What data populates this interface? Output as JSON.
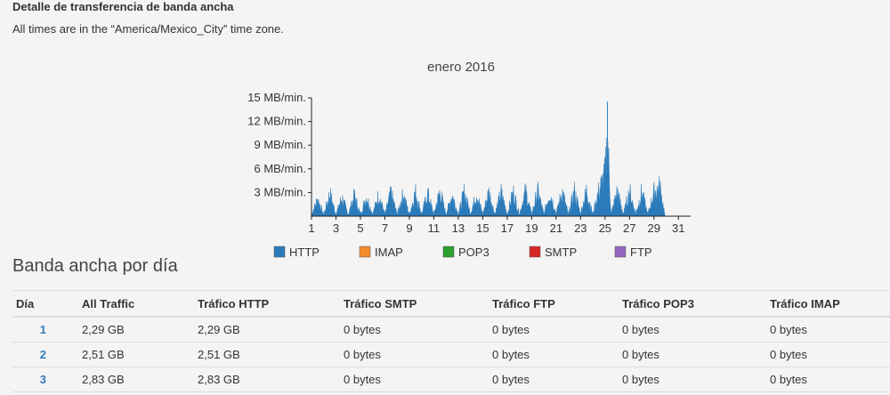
{
  "page": {
    "section_title": "Detalle de transferencia de banda ancha",
    "timezone_note": "All times are in the “America/Mexico_City” time zone.",
    "daily_heading": "Banda ancha por día"
  },
  "colors": {
    "http": "#2b7bba",
    "imap": "#f58a2c",
    "pop3": "#2ca02c",
    "smtp": "#d62728",
    "ftp": "#9467bd",
    "link": "#337ab7"
  },
  "chart_data": {
    "type": "area",
    "title": "enero 2016",
    "xlabel": "",
    "ylabel": "",
    "xlim": [
      1,
      32
    ],
    "ylim": [
      0,
      15
    ],
    "y_ticks": [
      "3 MB/min.",
      "6 MB/min.",
      "9 MB/min.",
      "12 MB/min.",
      "15 MB/min."
    ],
    "y_tick_values": [
      3,
      6,
      9,
      12,
      15
    ],
    "x_ticks": [
      "1",
      "3",
      "5",
      "7",
      "9",
      "11",
      "13",
      "15",
      "17",
      "19",
      "21",
      "23",
      "25",
      "27",
      "29",
      "31"
    ],
    "x_tick_values": [
      1,
      3,
      5,
      7,
      9,
      11,
      13,
      15,
      17,
      19,
      21,
      23,
      25,
      27,
      29,
      31
    ],
    "series": [
      {
        "name": "HTTP",
        "x": [
          1,
          1.5,
          2,
          2.5,
          3,
          3.5,
          4,
          4.5,
          5,
          5.5,
          6,
          6.5,
          7,
          7.5,
          8,
          8.5,
          9,
          9.5,
          10,
          10.5,
          11,
          11.5,
          12,
          12.5,
          13,
          13.5,
          14,
          14.5,
          15,
          15.5,
          16,
          16.5,
          17,
          17.5,
          18,
          18.5,
          19,
          19.5,
          20,
          20.5,
          21,
          21.5,
          22,
          22.5,
          23,
          23.5,
          24,
          24.5,
          25,
          25.2,
          25.5,
          26,
          26.5,
          27,
          27.5,
          28,
          28.5,
          29,
          29.5,
          29.9
        ],
        "y": [
          0.3,
          3.2,
          0.3,
          4.2,
          0.4,
          3.5,
          0.3,
          3.8,
          0.4,
          3.6,
          0.4,
          4.0,
          0.4,
          4.3,
          0.4,
          4.1,
          0.4,
          4.5,
          0.4,
          4.2,
          0.4,
          4.6,
          0.4,
          4.0,
          0.4,
          4.5,
          0.5,
          4.2,
          0.4,
          4.6,
          0.4,
          4.4,
          0.4,
          4.5,
          0.4,
          4.6,
          0.4,
          4.6,
          0.4,
          4.5,
          0.5,
          4.6,
          0.4,
          4.6,
          0.5,
          4.8,
          0.4,
          4.8,
          7.5,
          14.5,
          0.4,
          4.6,
          0.4,
          4.6,
          0.5,
          4.5,
          0.4,
          4.4,
          5.4,
          0.2
        ]
      },
      {
        "name": "IMAP",
        "x": [],
        "y": []
      },
      {
        "name": "POP3",
        "x": [],
        "y": []
      },
      {
        "name": "SMTP",
        "x": [],
        "y": []
      },
      {
        "name": "FTP",
        "x": [],
        "y": []
      }
    ],
    "legend": [
      "HTTP",
      "IMAP",
      "POP3",
      "SMTP",
      "FTP"
    ],
    "legend_position": "bottom"
  },
  "table": {
    "headers": [
      "Día",
      "All Traffic",
      "Tráfico HTTP",
      "Tráfico SMTP",
      "Tráfico FTP",
      "Tráfico POP3",
      "Tráfico IMAP"
    ],
    "rows": [
      {
        "day": "1",
        "all": "2,29 GB",
        "http": "2,29 GB",
        "smtp": "0 bytes",
        "ftp": "0 bytes",
        "pop3": "0 bytes",
        "imap": "0 bytes"
      },
      {
        "day": "2",
        "all": "2,51 GB",
        "http": "2,51 GB",
        "smtp": "0 bytes",
        "ftp": "0 bytes",
        "pop3": "0 bytes",
        "imap": "0 bytes"
      },
      {
        "day": "3",
        "all": "2,83 GB",
        "http": "2,83 GB",
        "smtp": "0 bytes",
        "ftp": "0 bytes",
        "pop3": "0 bytes",
        "imap": "0 bytes"
      }
    ]
  }
}
